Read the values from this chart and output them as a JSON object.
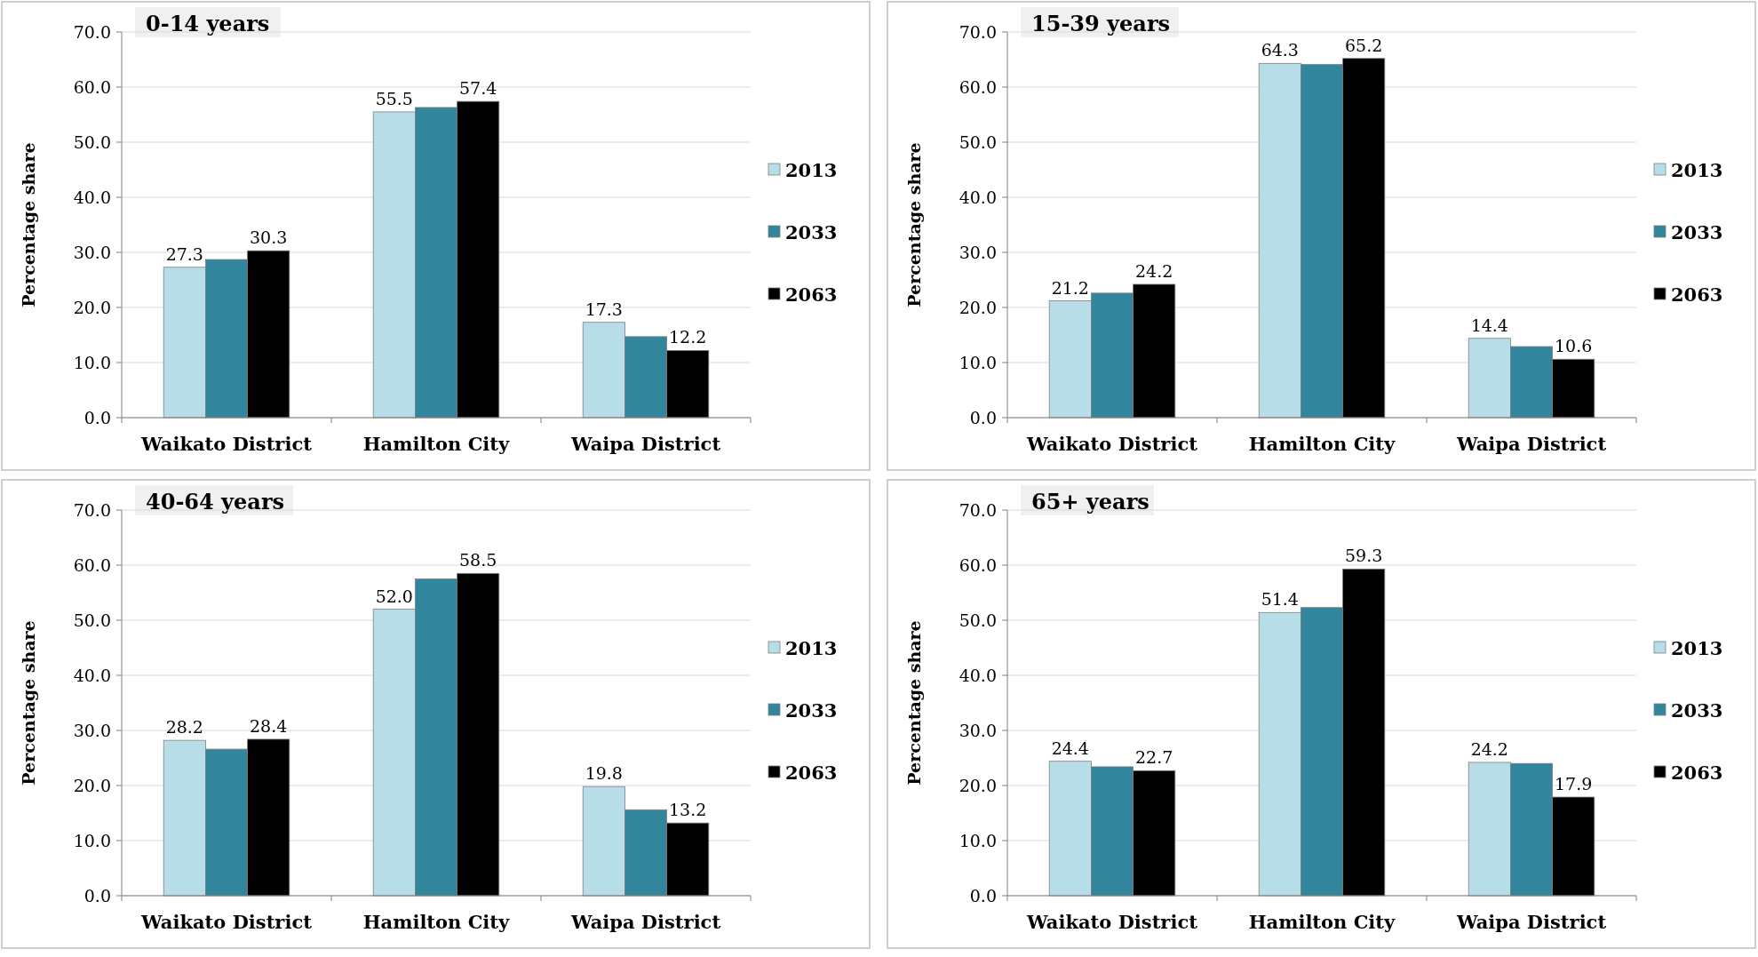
{
  "chart_data": [
    {
      "type": "bar",
      "title": "0-14 years",
      "ylabel": "Percentage share",
      "categories": [
        "Waikato District",
        "Hamilton City",
        "Waipa District"
      ],
      "ylim": [
        0,
        70
      ],
      "yticks": [
        {
          "value": 0,
          "label": "0.0"
        },
        {
          "value": 10,
          "label": "10.0"
        },
        {
          "value": 20,
          "label": "20.0"
        },
        {
          "value": 30,
          "label": "30.0"
        },
        {
          "value": 40,
          "label": "40.0"
        },
        {
          "value": 50,
          "label": "50.0"
        },
        {
          "value": 60,
          "label": "60.0"
        },
        {
          "value": 70,
          "label": "70.0"
        }
      ],
      "grid": "y",
      "legend": "right",
      "series": [
        {
          "name": "2013",
          "color": "#b7dde8",
          "values": [
            27.3,
            55.5,
            17.3
          ],
          "value_labels": [
            "27.3",
            "55.5",
            "17.3"
          ]
        },
        {
          "name": "2033",
          "color": "#31859c",
          "values": [
            28.7,
            56.3,
            14.7
          ],
          "value_labels": [
            null,
            null,
            null
          ]
        },
        {
          "name": "2063",
          "color": "#000000",
          "values": [
            30.3,
            57.4,
            12.2
          ],
          "value_labels": [
            "30.3",
            "57.4",
            "12.2"
          ]
        }
      ]
    },
    {
      "type": "bar",
      "title": "15-39 years",
      "ylabel": "Percentage share",
      "categories": [
        "Waikato District",
        "Hamilton City",
        "Waipa District"
      ],
      "ylim": [
        0,
        70
      ],
      "yticks": [
        {
          "value": 0,
          "label": "0.0"
        },
        {
          "value": 10,
          "label": "10.0"
        },
        {
          "value": 20,
          "label": "20.0"
        },
        {
          "value": 30,
          "label": "30.0"
        },
        {
          "value": 40,
          "label": "40.0"
        },
        {
          "value": 50,
          "label": "50.0"
        },
        {
          "value": 60,
          "label": "60.0"
        },
        {
          "value": 70,
          "label": "70.0"
        }
      ],
      "grid": "y",
      "legend": "right",
      "series": [
        {
          "name": "2013",
          "color": "#b7dde8",
          "values": [
            21.2,
            64.3,
            14.4
          ],
          "value_labels": [
            "21.2",
            "64.3",
            "14.4"
          ]
        },
        {
          "name": "2033",
          "color": "#31859c",
          "values": [
            22.6,
            64.1,
            12.9
          ],
          "value_labels": [
            null,
            null,
            null
          ]
        },
        {
          "name": "2063",
          "color": "#000000",
          "values": [
            24.2,
            65.2,
            10.6
          ],
          "value_labels": [
            "24.2",
            "65.2",
            "10.6"
          ]
        }
      ]
    },
    {
      "type": "bar",
      "title": "40-64 years",
      "ylabel": "Percentage share",
      "categories": [
        "Waikato District",
        "Hamilton City",
        "Waipa District"
      ],
      "ylim": [
        0,
        70
      ],
      "yticks": [
        {
          "value": 0,
          "label": "0.0"
        },
        {
          "value": 10,
          "label": "10.0"
        },
        {
          "value": 20,
          "label": "20.0"
        },
        {
          "value": 30,
          "label": "30.0"
        },
        {
          "value": 40,
          "label": "40.0"
        },
        {
          "value": 50,
          "label": "50.0"
        },
        {
          "value": 60,
          "label": "60.0"
        },
        {
          "value": 70,
          "label": "70.0"
        }
      ],
      "grid": "y",
      "legend": "right",
      "series": [
        {
          "name": "2013",
          "color": "#b7dde8",
          "values": [
            28.2,
            52.0,
            19.8
          ],
          "value_labels": [
            "28.2",
            "52.0",
            "19.8"
          ]
        },
        {
          "name": "2033",
          "color": "#31859c",
          "values": [
            26.6,
            57.5,
            15.6
          ],
          "value_labels": [
            null,
            null,
            null
          ]
        },
        {
          "name": "2063",
          "color": "#000000",
          "values": [
            28.4,
            58.5,
            13.2
          ],
          "value_labels": [
            "28.4",
            "58.5",
            "13.2"
          ]
        }
      ]
    },
    {
      "type": "bar",
      "title": "65+ years",
      "ylabel": "Percentage share",
      "categories": [
        "Waikato District",
        "Hamilton City",
        "Waipa District"
      ],
      "ylim": [
        0,
        70
      ],
      "yticks": [
        {
          "value": 0,
          "label": "0.0"
        },
        {
          "value": 10,
          "label": "10.0"
        },
        {
          "value": 20,
          "label": "20.0"
        },
        {
          "value": 30,
          "label": "30.0"
        },
        {
          "value": 40,
          "label": "40.0"
        },
        {
          "value": 50,
          "label": "50.0"
        },
        {
          "value": 60,
          "label": "60.0"
        },
        {
          "value": 70,
          "label": "70.0"
        }
      ],
      "grid": "y",
      "legend": "right",
      "series": [
        {
          "name": "2013",
          "color": "#b7dde8",
          "values": [
            24.4,
            51.4,
            24.2
          ],
          "value_labels": [
            "24.4",
            "51.4",
            "24.2"
          ]
        },
        {
          "name": "2033",
          "color": "#31859c",
          "values": [
            23.4,
            52.3,
            24.0
          ],
          "value_labels": [
            null,
            null,
            null
          ]
        },
        {
          "name": "2063",
          "color": "#000000",
          "values": [
            22.7,
            59.3,
            17.9
          ],
          "value_labels": [
            "22.7",
            "59.3",
            "17.9"
          ]
        }
      ]
    }
  ]
}
